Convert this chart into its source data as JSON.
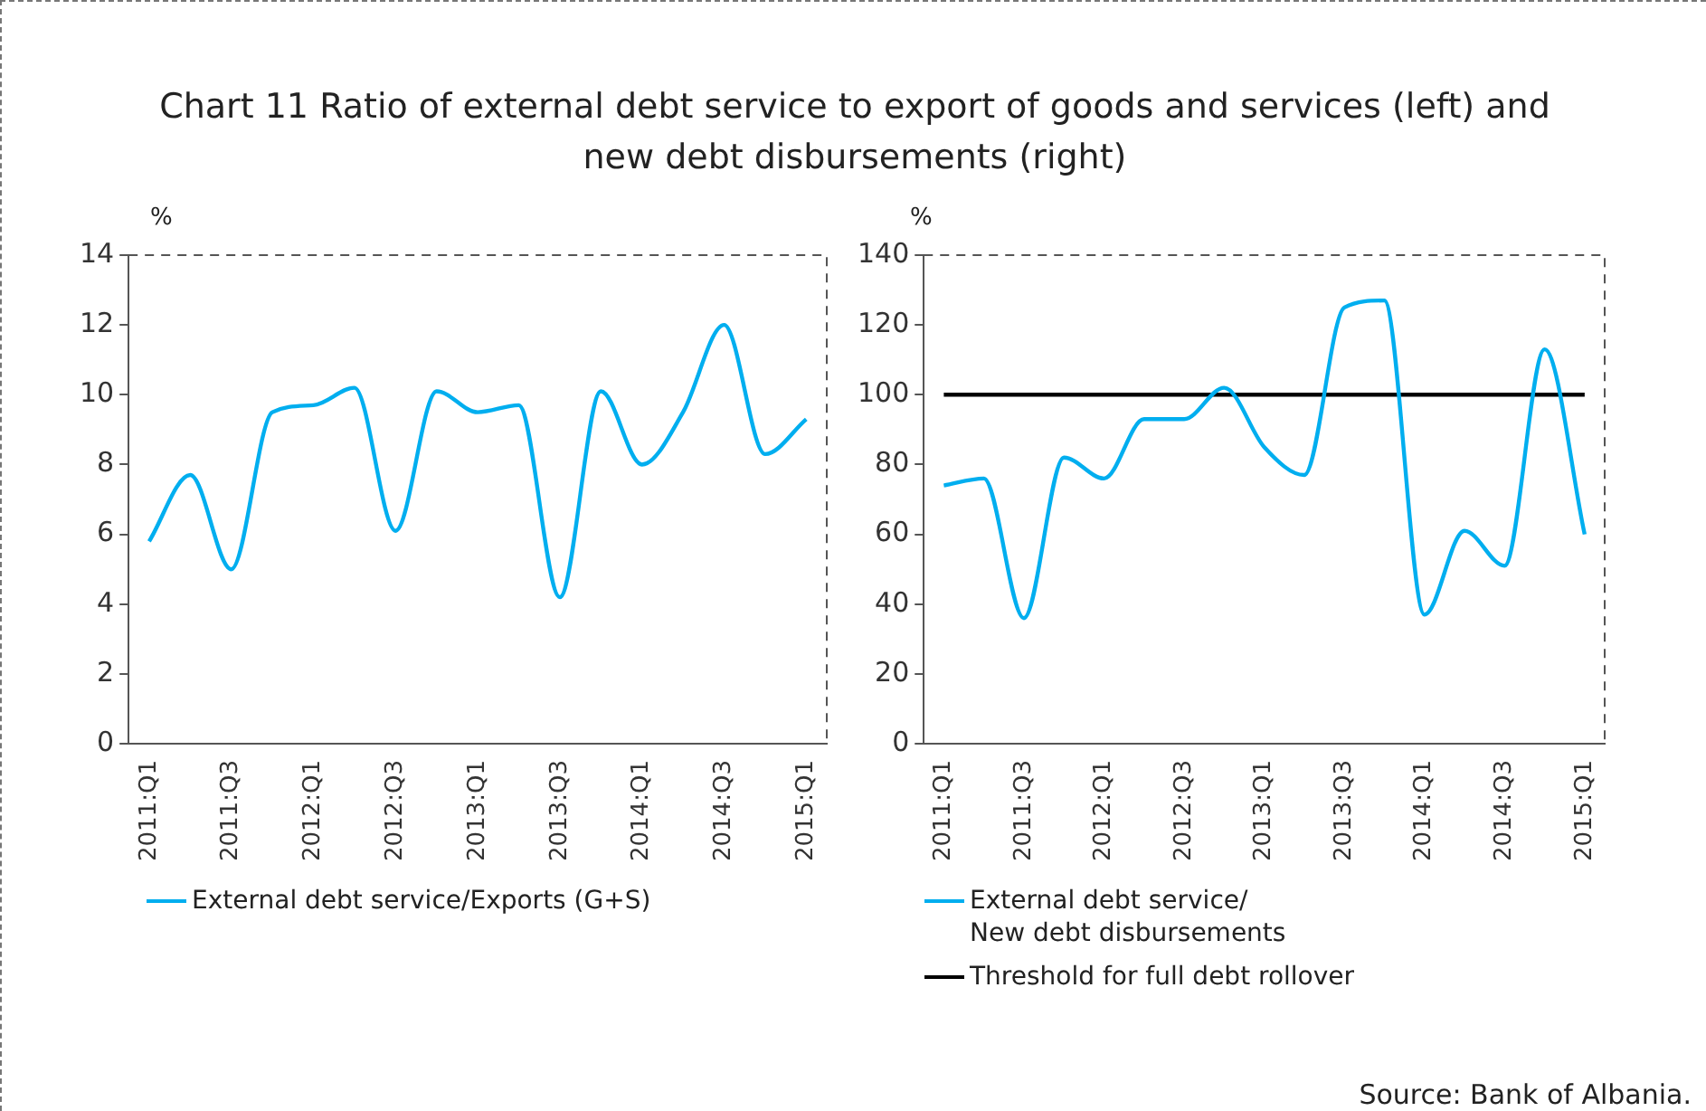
{
  "chart_data": [
    {
      "type": "line",
      "title": "Chart 11 Ratio of external debt service to export of goods and services (left) and new debt disbursements (right)",
      "ylabel": "%",
      "categories": [
        "2011:Q1",
        null,
        "2011:Q3",
        null,
        "2012:Q1",
        null,
        "2012:Q3",
        null,
        "2013:Q1",
        null,
        "2013:Q3",
        null,
        "2014:Q1",
        null,
        "2014:Q3",
        null,
        "2015:Q1"
      ],
      "series": [
        {
          "name": "External debt service/Exports (G+S)",
          "color": "#00aeef",
          "values": [
            5.8,
            7.7,
            5.0,
            9.5,
            9.7,
            10.2,
            6.1,
            10.1,
            9.5,
            9.7,
            4.2,
            10.1,
            8.0,
            9.5,
            12.0,
            8.3,
            9.3
          ]
        }
      ],
      "ylim": [
        0,
        14
      ],
      "yticks": [
        0,
        2,
        4,
        6,
        8,
        10,
        12,
        14
      ],
      "grid": false,
      "legend": "bottom",
      "marker": "none",
      "line_style": "solid"
    },
    {
      "type": "line",
      "ylabel": "%",
      "categories": [
        "2011:Q1",
        null,
        "2011:Q3",
        null,
        "2012:Q1",
        null,
        "2012:Q3",
        null,
        "2013:Q1",
        null,
        "2013:Q3",
        null,
        "2014:Q1",
        null,
        "2014:Q3",
        null,
        "2015:Q1"
      ],
      "series": [
        {
          "name": "External debt service/\nNew debt disbursements",
          "color": "#00aeef",
          "values": [
            74,
            76,
            36,
            82,
            76,
            93,
            93,
            102,
            85,
            77,
            125,
            127,
            37,
            61,
            51,
            113,
            60
          ]
        },
        {
          "name": "Threshold for full debt rollover",
          "color": "#000000",
          "values": [
            100,
            100,
            100,
            100,
            100,
            100,
            100,
            100,
            100,
            100,
            100,
            100,
            100,
            100,
            100,
            100,
            100
          ]
        }
      ],
      "ylim": [
        0,
        140
      ],
      "yticks": [
        0,
        20,
        40,
        60,
        80,
        100,
        120,
        140
      ],
      "grid": false,
      "legend": "bottom",
      "marker": "none",
      "line_style": "solid",
      "annotations": [
        "Source: Bank of Albania."
      ]
    }
  ]
}
